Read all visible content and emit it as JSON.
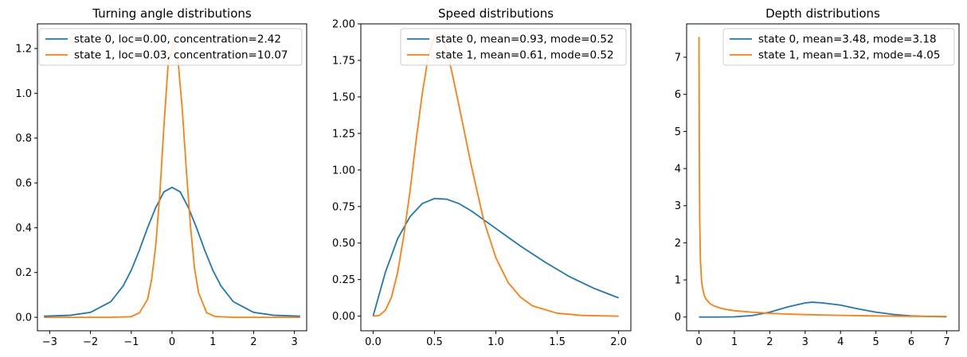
{
  "colors": {
    "state0": "#1f77b4",
    "state1": "#ff7f0e"
  },
  "chart_data": [
    {
      "type": "line",
      "title": "Turning angle distributions",
      "xlabel": "",
      "ylabel": "",
      "xlim": [
        -3.3,
        3.3
      ],
      "ylim": [
        -0.06,
        1.31
      ],
      "xticks": [
        -3,
        -2,
        -1,
        0,
        1,
        2,
        3
      ],
      "xtick_labels": [
        "−3",
        "−2",
        "−1",
        "0",
        "1",
        "2",
        "3"
      ],
      "yticks": [
        0.0,
        0.2,
        0.4,
        0.6,
        0.8,
        1.0,
        1.2
      ],
      "ytick_labels": [
        "0.0",
        "0.2",
        "0.4",
        "0.6",
        "0.8",
        "1.0",
        "1.2"
      ],
      "legend_position": "top-right",
      "series": [
        {
          "name": "state 0, loc=0.00, concentration=2.42",
          "color": "#1f77b4",
          "x": [
            -3.14,
            -2.5,
            -2.0,
            -1.5,
            -1.2,
            -1.0,
            -0.8,
            -0.6,
            -0.4,
            -0.2,
            0.0,
            0.2,
            0.4,
            0.6,
            0.8,
            1.0,
            1.2,
            1.5,
            2.0,
            2.5,
            3.14
          ],
          "y": [
            0.005,
            0.009,
            0.022,
            0.07,
            0.14,
            0.21,
            0.3,
            0.4,
            0.49,
            0.56,
            0.58,
            0.56,
            0.49,
            0.4,
            0.3,
            0.21,
            0.14,
            0.07,
            0.022,
            0.009,
            0.005
          ]
        },
        {
          "name": "state 1, loc=0.03, concentration=10.07",
          "color": "#ff7f0e",
          "x": [
            -3.14,
            -1.5,
            -1.0,
            -0.8,
            -0.6,
            -0.5,
            -0.4,
            -0.3,
            -0.2,
            -0.1,
            0.03,
            0.15,
            0.25,
            0.35,
            0.45,
            0.55,
            0.65,
            0.85,
            1.05,
            1.5,
            3.14
          ],
          "y": [
            0.0,
            0.0,
            0.003,
            0.02,
            0.08,
            0.17,
            0.32,
            0.55,
            0.85,
            1.12,
            1.23,
            1.14,
            0.93,
            0.66,
            0.41,
            0.22,
            0.11,
            0.02,
            0.004,
            0.0,
            0.0
          ]
        }
      ]
    },
    {
      "type": "line",
      "title": "Speed distributions",
      "xlabel": "",
      "ylabel": "",
      "xlim": [
        -0.1,
        2.1
      ],
      "ylim": [
        -0.1,
        2.0
      ],
      "xticks": [
        0.0,
        0.5,
        1.0,
        1.5,
        2.0
      ],
      "xtick_labels": [
        "0.0",
        "0.5",
        "1.0",
        "1.5",
        "2.0"
      ],
      "yticks": [
        0.0,
        0.25,
        0.5,
        0.75,
        1.0,
        1.25,
        1.5,
        1.75,
        2.0
      ],
      "ytick_labels": [
        "0.00",
        "0.25",
        "0.50",
        "0.75",
        "1.00",
        "1.25",
        "1.50",
        "1.75",
        "2.00"
      ],
      "legend_position": "top-right",
      "series": [
        {
          "name": "state 0, mean=0.93, mode=0.52",
          "color": "#1f77b4",
          "x": [
            0.0,
            0.05,
            0.1,
            0.2,
            0.3,
            0.4,
            0.5,
            0.6,
            0.7,
            0.8,
            0.9,
            1.0,
            1.1,
            1.2,
            1.4,
            1.6,
            1.8,
            2.0
          ],
          "y": [
            0.0,
            0.15,
            0.3,
            0.53,
            0.68,
            0.77,
            0.805,
            0.8,
            0.77,
            0.72,
            0.66,
            0.6,
            0.54,
            0.48,
            0.37,
            0.27,
            0.19,
            0.125
          ]
        },
        {
          "name": "state 1, mean=0.61, mode=0.52",
          "color": "#ff7f0e",
          "x": [
            0.0,
            0.05,
            0.1,
            0.15,
            0.2,
            0.25,
            0.3,
            0.35,
            0.4,
            0.45,
            0.5,
            0.55,
            0.6,
            0.65,
            0.7,
            0.8,
            0.9,
            1.0,
            1.1,
            1.2,
            1.3,
            1.5,
            1.7,
            2.0
          ],
          "y": [
            0.0,
            0.005,
            0.04,
            0.13,
            0.3,
            0.55,
            0.85,
            1.2,
            1.52,
            1.78,
            1.92,
            1.92,
            1.82,
            1.64,
            1.44,
            1.03,
            0.66,
            0.4,
            0.23,
            0.13,
            0.07,
            0.02,
            0.005,
            0.0
          ]
        }
      ]
    },
    {
      "type": "line",
      "title": "Depth distributions",
      "xlabel": "",
      "ylabel": "",
      "xlim": [
        -0.35,
        7.35
      ],
      "ylim": [
        -0.37,
        7.9
      ],
      "xticks": [
        0,
        1,
        2,
        3,
        4,
        5,
        6,
        7
      ],
      "xtick_labels": [
        "0",
        "1",
        "2",
        "3",
        "4",
        "5",
        "6",
        "7"
      ],
      "yticks": [
        0,
        1,
        2,
        3,
        4,
        5,
        6,
        7
      ],
      "ytick_labels": [
        "0",
        "1",
        "2",
        "3",
        "4",
        "5",
        "6",
        "7"
      ],
      "legend_position": "top-right",
      "series": [
        {
          "name": "state 0, mean=3.48, mode=3.18",
          "color": "#1f77b4",
          "x": [
            0.0,
            0.5,
            1.0,
            1.5,
            2.0,
            2.5,
            3.0,
            3.2,
            3.5,
            4.0,
            4.5,
            5.0,
            5.5,
            6.0,
            6.5,
            7.0
          ],
          "y": [
            0.0,
            0.0,
            0.005,
            0.04,
            0.13,
            0.27,
            0.38,
            0.4,
            0.38,
            0.32,
            0.22,
            0.13,
            0.07,
            0.03,
            0.015,
            0.005
          ]
        },
        {
          "name": "state 1, mean=1.32, mode=-4.05",
          "color": "#ff7f0e",
          "x": [
            0.0,
            0.01,
            0.02,
            0.04,
            0.07,
            0.1,
            0.15,
            0.2,
            0.3,
            0.4,
            0.6,
            0.8,
            1.0,
            1.5,
            2.0,
            2.5,
            3.0,
            4.0,
            5.0,
            6.0,
            7.0
          ],
          "y": [
            7.55,
            4.2,
            2.6,
            1.55,
            1.0,
            0.78,
            0.58,
            0.48,
            0.37,
            0.31,
            0.24,
            0.2,
            0.17,
            0.13,
            0.1,
            0.08,
            0.065,
            0.045,
            0.03,
            0.02,
            0.015
          ]
        }
      ]
    }
  ]
}
